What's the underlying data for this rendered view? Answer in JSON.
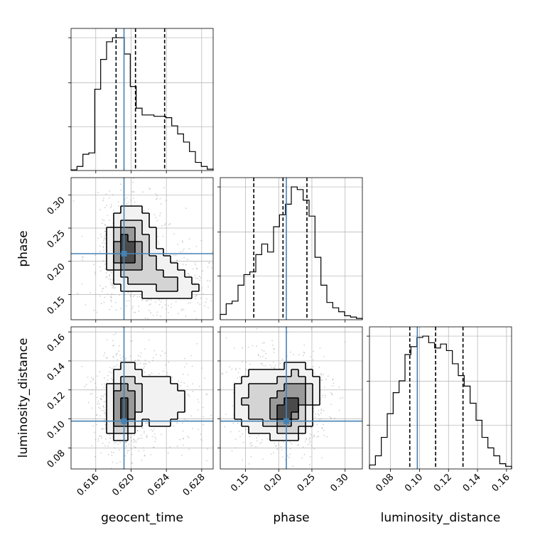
{
  "chart_data": {
    "type": "corner",
    "parameters": [
      {
        "name": "geocent_time",
        "range": [
          0.6132,
          0.6293
        ],
        "ticks": [
          0.616,
          0.62,
          0.624,
          0.628
        ],
        "tick_labels": [
          "0.616",
          "0.620",
          "0.624",
          "0.628"
        ],
        "truth": 0.6192,
        "quantiles": [
          0.6183,
          0.6205,
          0.6238
        ],
        "hist_edges": [
          0.6132,
          0.6293
        ],
        "hist_values": [
          0.5,
          3,
          12,
          13,
          60,
          82,
          95,
          98,
          98,
          86,
          62,
          46,
          41,
          41,
          40,
          40,
          39,
          33,
          27,
          21,
          14,
          6,
          3,
          1
        ]
      },
      {
        "name": "phase",
        "range": [
          0.112,
          0.326
        ],
        "ticks": [
          0.15,
          0.2,
          0.25,
          0.3
        ],
        "tick_labels": [
          "0.15",
          "0.20",
          "0.25",
          "0.30"
        ],
        "truth": 0.2115,
        "quantiles": [
          0.1625,
          0.2065,
          0.2425
        ],
        "hist_edges": [
          0.112,
          0.326
        ],
        "hist_values": [
          4,
          12,
          14,
          26,
          34,
          36,
          49,
          57,
          51,
          70,
          79,
          87,
          100,
          98,
          90,
          78,
          47,
          26,
          13,
          9,
          6,
          3,
          2,
          1
        ]
      },
      {
        "name": "luminosity_distance",
        "range": [
          0.0655,
          0.1635
        ],
        "ticks": [
          0.08,
          0.1,
          0.12,
          0.14,
          0.16
        ],
        "tick_labels": [
          "0.08",
          "0.10",
          "0.12",
          "0.14",
          "0.16"
        ],
        "truth": 0.0985,
        "quantiles": [
          0.0933,
          0.1111,
          0.13
        ],
        "hist_edges": [
          0.0655,
          0.1635
        ],
        "hist_values": [
          3,
          10,
          24,
          42,
          58,
          67,
          87,
          93,
          100,
          101,
          96,
          92,
          95,
          90,
          80,
          71,
          63,
          50,
          37,
          24,
          16,
          10,
          4,
          2
        ]
      }
    ],
    "panels_2d": [
      {
        "x": "geocent_time",
        "y": "phase",
        "blobs": [
          {
            "cx": 0.6192,
            "cy": 0.2185,
            "sx": 0.0009,
            "sy": 0.025,
            "w": 1.0
          },
          {
            "cx": 0.6205,
            "cy": 0.225,
            "sx": 0.0014,
            "sy": 0.035,
            "w": 0.6
          },
          {
            "cx": 0.6245,
            "cy": 0.162,
            "sx": 0.002,
            "sy": 0.015,
            "w": 0.45
          },
          {
            "cx": 0.622,
            "cy": 0.19,
            "sx": 0.0024,
            "sy": 0.02,
            "w": 0.35
          }
        ]
      },
      {
        "x": "geocent_time",
        "y": "luminosity_distance",
        "blobs": [
          {
            "cx": 0.619,
            "cy": 0.1045,
            "sx": 0.0009,
            "sy": 0.01,
            "w": 1.0
          },
          {
            "cx": 0.6195,
            "cy": 0.12,
            "sx": 0.0011,
            "sy": 0.012,
            "w": 0.55
          },
          {
            "cx": 0.6235,
            "cy": 0.112,
            "sx": 0.002,
            "sy": 0.013,
            "w": 0.35
          }
        ]
      },
      {
        "x": "phase",
        "y": "luminosity_distance",
        "blobs": [
          {
            "cx": 0.212,
            "cy": 0.104,
            "sx": 0.018,
            "sy": 0.009,
            "w": 1.0
          },
          {
            "cx": 0.225,
            "cy": 0.121,
            "sx": 0.02,
            "sy": 0.01,
            "w": 0.7
          },
          {
            "cx": 0.165,
            "cy": 0.112,
            "sx": 0.02,
            "sy": 0.014,
            "w": 0.5
          }
        ]
      }
    ],
    "colors": {
      "truth": "#4682b4",
      "hist": "#000000",
      "grid": "#b0b0b0"
    },
    "grid": true
  }
}
